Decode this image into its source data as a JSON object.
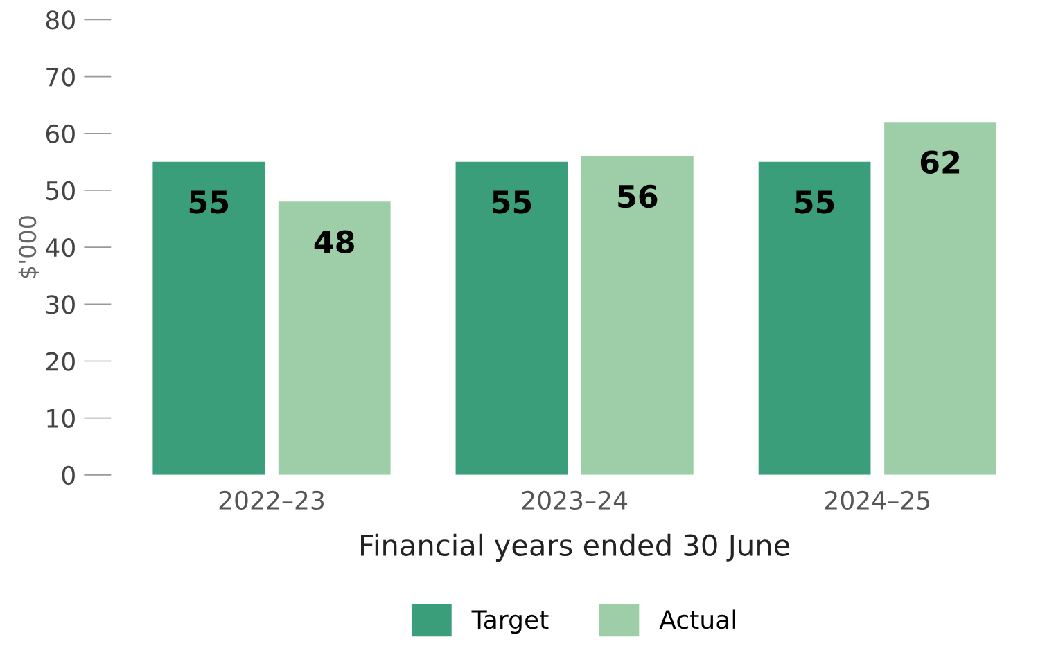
{
  "chart_data": {
    "type": "bar",
    "xlabel": "Financial years ended 30 June",
    "ylabel": "$'000",
    "categories": [
      "2022–23",
      "2023–24",
      "2024–25"
    ],
    "series": [
      {
        "name": "Target",
        "color": "#3a9e7a",
        "values": [
          55,
          55,
          55
        ]
      },
      {
        "name": "Actual",
        "color": "#9dcea7",
        "values": [
          48,
          56,
          62
        ]
      }
    ],
    "ylim": [
      0,
      80
    ],
    "yticks": [
      0,
      10,
      20,
      30,
      40,
      50,
      60,
      70,
      80
    ],
    "grid": false,
    "legend": "bottom",
    "data_labels": true
  }
}
